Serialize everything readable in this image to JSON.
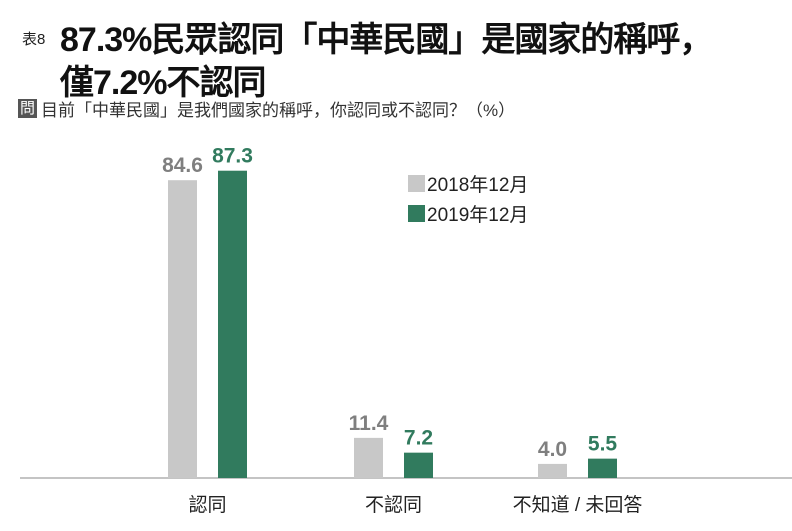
{
  "header": {
    "prefix": "表8",
    "title_line1": "87.3%民眾認同「中華民國」是國家的稱呼，",
    "title_line2": "僅7.2%不認同"
  },
  "question": {
    "badge": "問",
    "text": "目前「中華民國」是我們國家的稱呼，你認同或不認同？（%）"
  },
  "chart_data": {
    "type": "bar",
    "categories": [
      "認同",
      "不認同",
      "不知道 / 未回答"
    ],
    "series": [
      {
        "name": "2018年12月",
        "values": [
          84.6,
          11.4,
          4.0
        ],
        "color": "#c8c8c8",
        "label_color": "#7f7f7f"
      },
      {
        "name": "2019年12月",
        "values": [
          87.3,
          7.2,
          5.5
        ],
        "color": "#317b5e",
        "label_color": "#317b5e"
      }
    ],
    "legend": "top-right",
    "grid": false,
    "ylim": [
      0,
      100
    ]
  }
}
